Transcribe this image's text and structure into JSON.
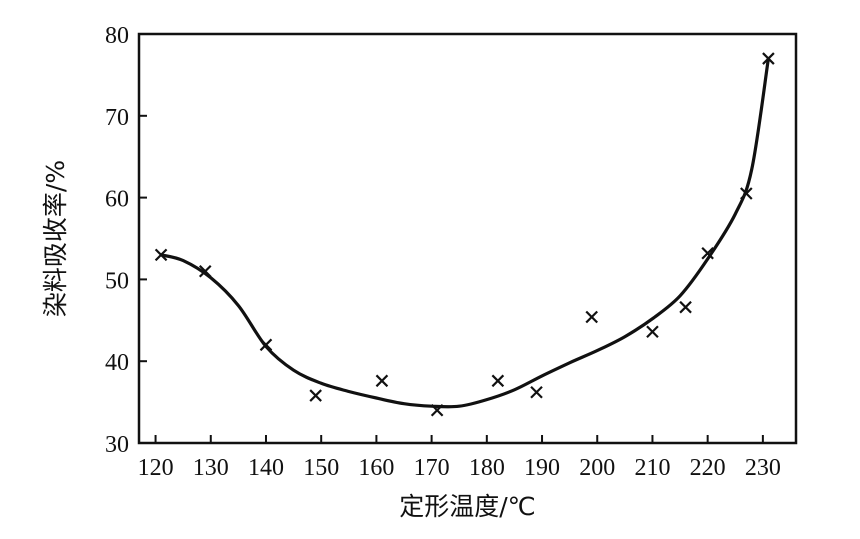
{
  "chart_data": {
    "type": "scatter",
    "title": "",
    "xlabel": "定形温度/℃",
    "ylabel": "染料吸收率/%",
    "xlim": [
      117,
      236
    ],
    "ylim": [
      30,
      80
    ],
    "xticks": [
      120,
      130,
      140,
      150,
      160,
      170,
      180,
      190,
      200,
      210,
      220,
      230
    ],
    "yticks": [
      30,
      40,
      50,
      60,
      70,
      80
    ],
    "grid": false,
    "series": [
      {
        "kind": "points",
        "marker": "x",
        "x": [
          121,
          129,
          140,
          149,
          161,
          171,
          182,
          189,
          199,
          210,
          216,
          220,
          227,
          231
        ],
        "y": [
          53.0,
          51.0,
          42.0,
          35.8,
          37.6,
          34.0,
          37.6,
          36.2,
          45.4,
          43.6,
          46.6,
          53.2,
          60.5,
          77.0
        ]
      },
      {
        "kind": "fit-curve",
        "x": [
          121,
          125,
          130,
          135,
          140,
          145,
          150,
          155,
          160,
          165,
          170,
          175,
          180,
          185,
          190,
          195,
          200,
          205,
          210,
          215,
          220,
          225,
          228,
          231
        ],
        "y": [
          53.0,
          52.3,
          50.2,
          46.8,
          41.8,
          38.9,
          37.3,
          36.3,
          35.5,
          34.8,
          34.5,
          34.5,
          35.3,
          36.5,
          38.2,
          39.8,
          41.3,
          43.0,
          45.2,
          48.0,
          52.5,
          58.0,
          63.5,
          77.0
        ]
      }
    ]
  }
}
